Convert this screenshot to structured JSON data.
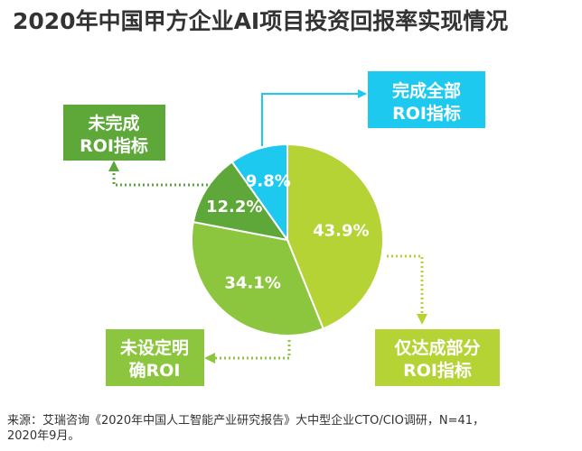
{
  "title": "2020年中国甲方企业AI项目投资回报率实现情况",
  "chart_data": {
    "type": "pie",
    "series": [
      {
        "name": "仅达成部分ROI指标",
        "value": 43.9,
        "label": "43.9%",
        "color": "#b5d334"
      },
      {
        "name": "未设定明确ROI",
        "value": 34.1,
        "label": "34.1%",
        "color": "#8cc63f"
      },
      {
        "name": "未完成ROI指标",
        "value": 12.2,
        "label": "12.2%",
        "color": "#5ea83a"
      },
      {
        "name": "完成全部ROI指标",
        "value": 9.8,
        "label": "9.8%",
        "color": "#1ec9f0"
      }
    ]
  },
  "callouts": {
    "complete": {
      "line1": "完成全部",
      "line2": "ROI指标"
    },
    "incomplete": {
      "line1": "未完成",
      "line2": "ROI指标"
    },
    "unset": {
      "line1": "未设定明",
      "line2": "确ROI"
    },
    "partial": {
      "line1": "仅达成部分",
      "line2": "ROI指标"
    }
  },
  "footnote": {
    "line1": "来源：艾瑞咨询《2020年中国人工智能产业研究报告》大中型企业CTO/CIO调研，N=41，",
    "line2": "2020年9月。"
  }
}
